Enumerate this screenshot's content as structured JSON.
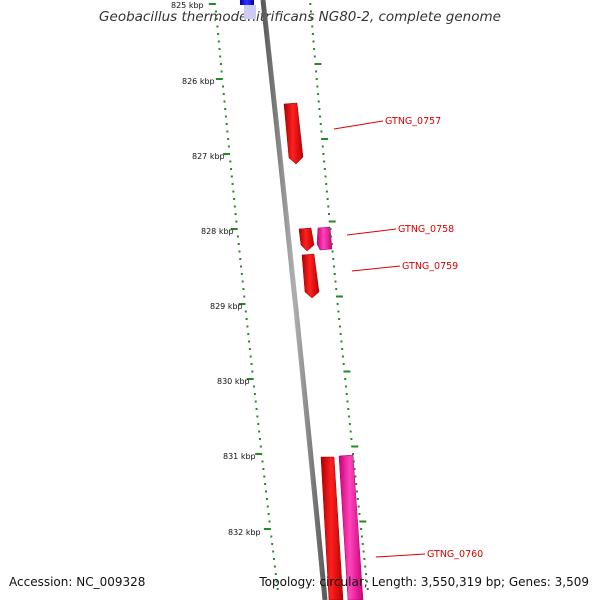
{
  "title": "Geobacillus thermodenitrificans NG80-2, complete genome",
  "accession": "Accession: NC_009328",
  "stats": "Topology: circular; Length: 3,550,319 bp; Genes: 3,509",
  "colors": {
    "backbone": "#808080",
    "tick": "#228b22",
    "forward_gene": "#ee0000",
    "reverse_gene": "#ff2299",
    "other_feature": "#0000ee",
    "label": "#dd0000"
  },
  "kbp_labels": [
    "825 kbp",
    "826 kbp",
    "827 kbp",
    "828 kbp",
    "829 kbp",
    "830 kbp",
    "831 kbp",
    "832 kbp"
  ],
  "genes": [
    {
      "name": "GTNG_0757"
    },
    {
      "name": "GTNG_0758"
    },
    {
      "name": "GTNG_0759"
    },
    {
      "name": "GTNG_0760"
    }
  ]
}
